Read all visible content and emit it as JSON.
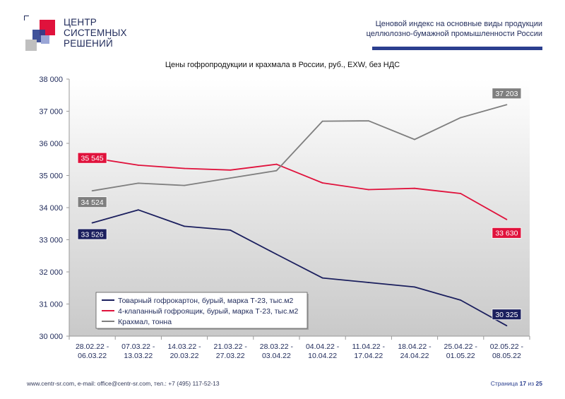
{
  "logo": {
    "lines": [
      "ЦЕНТР",
      "СИСТЕМНЫХ",
      "РЕШЕНИЙ"
    ]
  },
  "header": {
    "line1": "Ценовой  индекс  на  основные виды продукции",
    "line2": "целлюлозно-бумажной промышленности России"
  },
  "colors": {
    "navy": "#1b1f5e",
    "red": "#e0123c",
    "gray": "#7f7f7f",
    "accent_bar": "#2b3f8f"
  },
  "chart_data": {
    "type": "line",
    "title": "Цены гофропродукции и крахмала в России, руб., EXW, без НДС",
    "categories": [
      [
        "28.02.22 -",
        "06.03.22"
      ],
      [
        "07.03.22 -",
        "13.03.22"
      ],
      [
        "14.03.22 -",
        "20.03.22"
      ],
      [
        "21.03.22 -",
        "27.03.22"
      ],
      [
        "28.03.22 -",
        "03.04.22"
      ],
      [
        "04.04.22 -",
        "10.04.22"
      ],
      [
        "11.04.22 -",
        "17.04.22"
      ],
      [
        "18.04.22 -",
        "24.04.22"
      ],
      [
        "25.04.22 -",
        "01.05.22"
      ],
      [
        "02.05.22 -",
        "08.05.22"
      ]
    ],
    "ylim": [
      30000,
      38000
    ],
    "yticks": [
      {
        "value": 30000,
        "label": "30 000"
      },
      {
        "value": 31000,
        "label": "31 000"
      },
      {
        "value": 32000,
        "label": "32 000"
      },
      {
        "value": 33000,
        "label": "33 000"
      },
      {
        "value": 34000,
        "label": "34 000"
      },
      {
        "value": 35000,
        "label": "35 000"
      },
      {
        "value": 36000,
        "label": "36 000"
      },
      {
        "value": 37000,
        "label": "37 000"
      },
      {
        "value": 38000,
        "label": "38 000"
      }
    ],
    "series": [
      {
        "name": "Товарный гофрокартон, бурый, марка Т-23, тыс.м2",
        "color": "#1b1f5e",
        "values": [
          33526,
          33930,
          33420,
          33300,
          32550,
          31810,
          31670,
          31530,
          31120,
          30325
        ],
        "labels": [
          {
            "index": 0,
            "text": "33 526"
          },
          {
            "index": 9,
            "text": "30 325"
          }
        ]
      },
      {
        "name": "4-клапанный гофроящик, бурый, марка Т-23, тыс.м2",
        "color": "#e0123c",
        "values": [
          35545,
          35320,
          35220,
          35170,
          35350,
          34770,
          34560,
          34600,
          34440,
          33630
        ],
        "labels": [
          {
            "index": 0,
            "text": "35 545"
          },
          {
            "index": 9,
            "text": "33 630"
          }
        ]
      },
      {
        "name": "Крахмал, тонна",
        "color": "#7f7f7f",
        "values": [
          34524,
          34760,
          34690,
          34920,
          35150,
          36690,
          36700,
          36120,
          36800,
          37203
        ],
        "labels": [
          {
            "index": 0,
            "text": "34 524"
          },
          {
            "index": 9,
            "text": "37 203"
          }
        ]
      }
    ],
    "legend_position": "bottom-left",
    "grid": false
  },
  "footer": {
    "contacts": "www.centr-sr.com, e-mail: office@centr-sr.com, тел.: +7 (495) 117-52-13",
    "page_prefix": "Страница",
    "page_current": "17",
    "page_sep": "из",
    "page_total": "25"
  }
}
